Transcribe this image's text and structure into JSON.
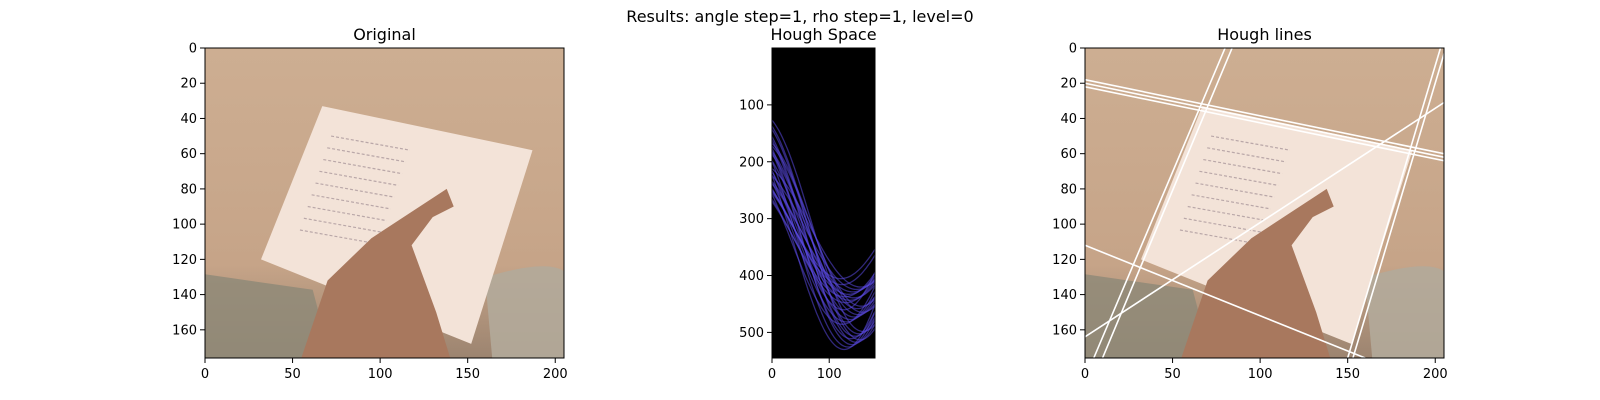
{
  "suptitle": "Results: angle step=1, rho step=1, level=0",
  "chart_data": [
    {
      "type": "image",
      "title": "Original",
      "xlim": [
        0,
        205
      ],
      "ylim": [
        176,
        0
      ],
      "xticks": [
        0,
        50,
        100,
        150,
        200
      ],
      "yticks": [
        0,
        20,
        40,
        60,
        80,
        100,
        120,
        140,
        160
      ],
      "grid": false
    },
    {
      "type": "heatmap",
      "title": "Hough Space",
      "xlim": [
        0,
        180
      ],
      "ylim": [
        545,
        0
      ],
      "xticks": [
        0,
        100
      ],
      "yticks": [
        100,
        200,
        300,
        400,
        500
      ],
      "colormap": "black-to-blue",
      "grid": false
    },
    {
      "type": "image",
      "title": "Hough lines",
      "xlim": [
        0,
        205
      ],
      "ylim": [
        176,
        0
      ],
      "xticks": [
        0,
        50,
        100,
        150,
        200
      ],
      "yticks": [
        0,
        20,
        40,
        60,
        80,
        100,
        120,
        140,
        160
      ],
      "grid": false,
      "lines": [
        {
          "x1": 0,
          "y1": 18,
          "x2": 205,
          "y2": 60
        },
        {
          "x1": 0,
          "y1": 20,
          "x2": 205,
          "y2": 62
        },
        {
          "x1": 0,
          "y1": 22,
          "x2": 205,
          "y2": 64
        },
        {
          "x1": 5,
          "y1": 176,
          "x2": 80,
          "y2": 0
        },
        {
          "x1": 10,
          "y1": 176,
          "x2": 84,
          "y2": 0
        },
        {
          "x1": 150,
          "y1": 176,
          "x2": 203,
          "y2": 0
        },
        {
          "x1": 153,
          "y1": 176,
          "x2": 206,
          "y2": 0
        },
        {
          "x1": 0,
          "y1": 112,
          "x2": 160,
          "y2": 176
        },
        {
          "x1": 0,
          "y1": 164,
          "x2": 205,
          "y2": 31
        }
      ]
    }
  ],
  "colors": {
    "paper": "#f3e3d8",
    "background": "#c8a88a",
    "hand": "#a8785e",
    "hough_bg": "#000000",
    "hough_curve": "#5a48e0",
    "line": "#ffffff"
  }
}
